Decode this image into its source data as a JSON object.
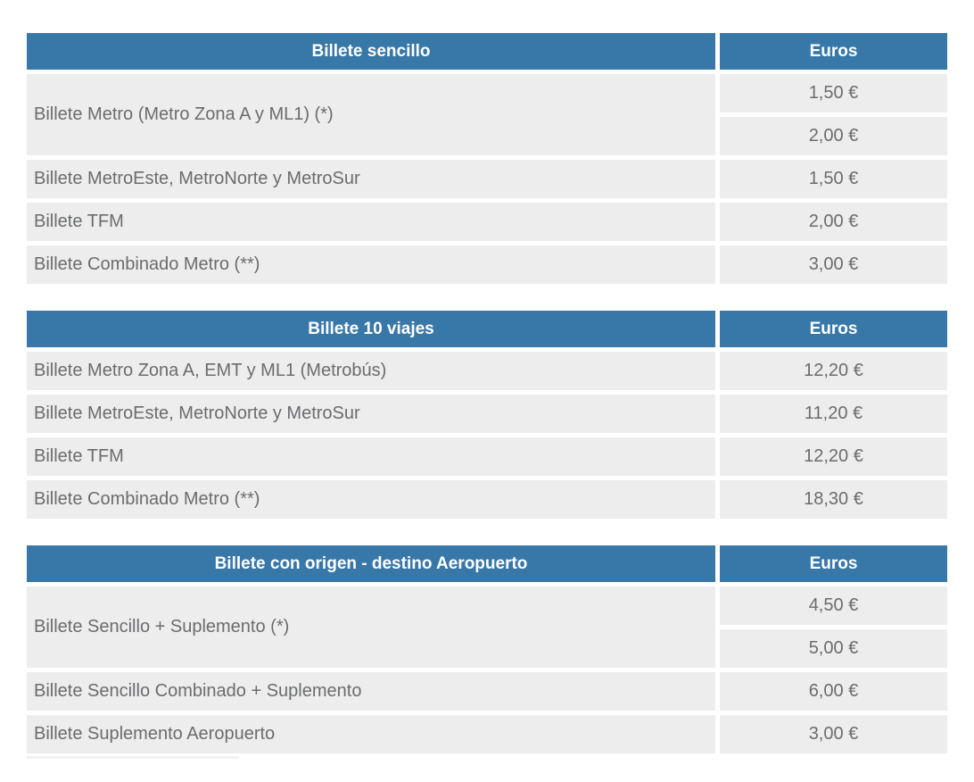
{
  "colors": {
    "header_bg": "#3878a8",
    "row_bg": "#ededed",
    "header_text": "#ffffff",
    "body_text": "#6b6c6e",
    "page_bg": "#ffffff"
  },
  "tables": [
    {
      "header": {
        "title": "Billete sencillo",
        "price_label": "Euros"
      },
      "rows": [
        {
          "label": "Billete Metro (Metro Zona A y ML1) (*)",
          "prices": [
            "1,50 €",
            "2,00 €"
          ]
        },
        {
          "label": "Billete MetroEste, MetroNorte y MetroSur",
          "prices": [
            "1,50 €"
          ]
        },
        {
          "label": "Billete TFM",
          "prices": [
            "2,00 €"
          ]
        },
        {
          "label": "Billete Combinado Metro (**)",
          "prices": [
            "3,00 €"
          ]
        }
      ]
    },
    {
      "header": {
        "title": "Billete 10 viajes",
        "price_label": "Euros"
      },
      "rows": [
        {
          "label": "Billete Metro Zona A, EMT y ML1 (Metrobús)",
          "prices": [
            "12,20 €"
          ]
        },
        {
          "label": "Billete MetroEste, MetroNorte y MetroSur",
          "prices": [
            "11,20 €"
          ]
        },
        {
          "label": "Billete TFM",
          "prices": [
            "12,20 €"
          ]
        },
        {
          "label": "Billete Combinado Metro (**)",
          "prices": [
            "18,30 €"
          ]
        }
      ]
    },
    {
      "header": {
        "title": "Billete con origen - destino Aeropuerto",
        "price_label": "Euros"
      },
      "rows": [
        {
          "label": "Billete Sencillo + Suplemento (*)",
          "prices": [
            "4,50 €",
            "5,00 €"
          ]
        },
        {
          "label": "Billete Sencillo Combinado + Suplemento",
          "prices": [
            "6,00 €"
          ]
        },
        {
          "label": "Billete Suplemento Aeropuerto",
          "prices": [
            "3,00 €"
          ]
        }
      ]
    }
  ]
}
